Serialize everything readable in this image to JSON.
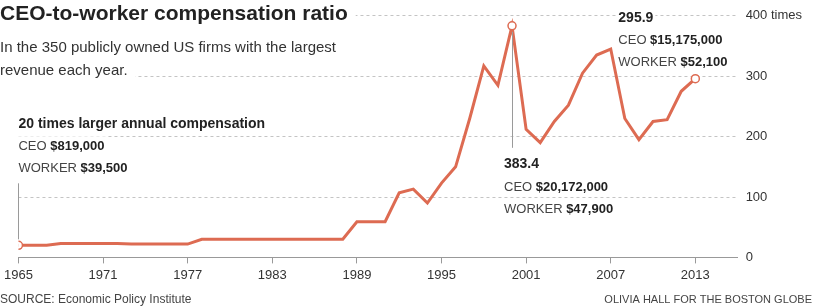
{
  "chart_data": {
    "type": "line",
    "title": "CEO-to-worker compensation ratio",
    "subtitle": [
      "In the 350 publicly owned US firms with the largest",
      "revenue each year."
    ],
    "source": "SOURCE: Economic Policy Institute",
    "credit": "OLIVIA HALL FOR THE BOSTON GLOBE",
    "color": "#dd6b52",
    "x": [
      1965,
      1966,
      1967,
      1968,
      1969,
      1970,
      1971,
      1972,
      1973,
      1974,
      1975,
      1976,
      1977,
      1978,
      1979,
      1980,
      1981,
      1982,
      1983,
      1984,
      1985,
      1986,
      1987,
      1988,
      1989,
      1990,
      1991,
      1992,
      1993,
      1994,
      1995,
      1996,
      1997,
      1998,
      1999,
      2000,
      2001,
      2002,
      2003,
      2004,
      2005,
      2006,
      2007,
      2008,
      2009,
      2010,
      2011,
      2012,
      2013
    ],
    "values": [
      20,
      20,
      20,
      23,
      23,
      23,
      23,
      23,
      22,
      22,
      22,
      22,
      22,
      30,
      30,
      30,
      30,
      30,
      30,
      30,
      30,
      30,
      30,
      30,
      59,
      59,
      59,
      107,
      113,
      90,
      123,
      150,
      230,
      317,
      285,
      383.4,
      212,
      190,
      225,
      252,
      305,
      335,
      345,
      230,
      195,
      225,
      228,
      275,
      295.9
    ],
    "xlim": [
      1965,
      2016
    ],
    "xticks": [
      1965,
      1971,
      1977,
      1983,
      1989,
      1995,
      2001,
      2007,
      2013
    ],
    "ylim": [
      0,
      400
    ],
    "yticks": [
      0,
      100,
      200,
      300,
      {
        "value": 400,
        "label": "400 times"
      }
    ],
    "grid": true,
    "annotations": [
      {
        "x": 1965,
        "heading": "20 times larger annual compensation",
        "lines": [
          [
            "CEO",
            "$819,000"
          ],
          [
            "WORKER",
            "$39,500"
          ]
        ]
      },
      {
        "x": 2000,
        "heading": "383.4",
        "lines": [
          [
            "CEO",
            "$20,172,000"
          ],
          [
            "WORKER",
            "$47,900"
          ]
        ]
      },
      {
        "x": 2013,
        "heading": "295.9",
        "lines": [
          [
            "CEO",
            "$15,175,000"
          ],
          [
            "WORKER",
            "$52,100"
          ]
        ]
      }
    ]
  }
}
